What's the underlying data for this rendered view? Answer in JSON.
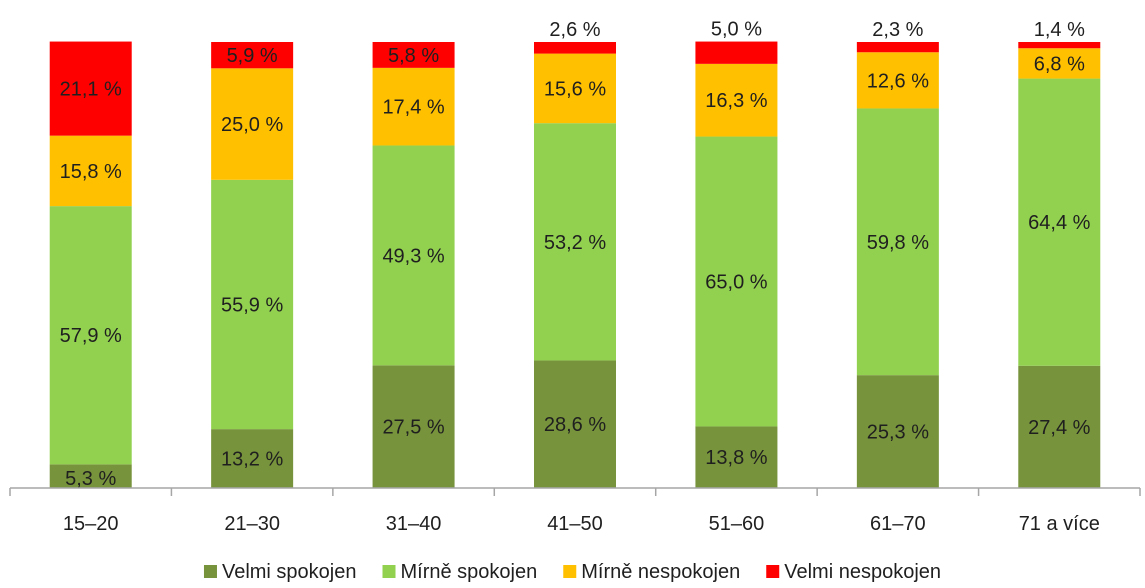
{
  "chart_data": {
    "type": "bar",
    "stacked": true,
    "title": "",
    "categories": [
      "15–20",
      "21–30",
      "31–40",
      "41–50",
      "51–60",
      "61–70",
      "71 a více"
    ],
    "series": [
      {
        "name": "Velmi spokojen",
        "color": "#77933c",
        "values": [
          5.3,
          13.2,
          27.5,
          28.6,
          13.8,
          25.3,
          27.4
        ],
        "labels": [
          "5,3 %",
          "13,2 %",
          "27,5 %",
          "28,6 %",
          "13,8 %",
          "25,3 %",
          "27,4 %"
        ]
      },
      {
        "name": "Mírně spokojen",
        "color": "#92d050",
        "values": [
          57.9,
          55.9,
          49.3,
          53.2,
          65.0,
          59.8,
          64.4
        ],
        "labels": [
          "57,9 %",
          "55,9 %",
          "49,3 %",
          "53,2 %",
          "65,0 %",
          "59,8 %",
          "64,4 %"
        ]
      },
      {
        "name": "Mírně nespokojen",
        "color": "#ffc000",
        "values": [
          15.8,
          25.0,
          17.4,
          15.6,
          16.3,
          12.6,
          6.8
        ],
        "labels": [
          "15,8 %",
          "25,0 %",
          "17,4 %",
          "15,6 %",
          "16,3 %",
          "12,6 %",
          "6,8 %"
        ]
      },
      {
        "name": "Velmi nespokojen",
        "color": "#ff0000",
        "values": [
          21.1,
          5.9,
          5.8,
          2.6,
          5.0,
          2.3,
          1.4
        ],
        "labels": [
          "21,1 %",
          "5,9 %",
          "5,8 %",
          "2,6 %",
          "5,0 %",
          "2,3 %",
          "1,4 %"
        ]
      }
    ],
    "ylim": [
      0,
      100
    ],
    "grid": false,
    "legend": "bottom",
    "axis_color": "#a6a6a6"
  }
}
